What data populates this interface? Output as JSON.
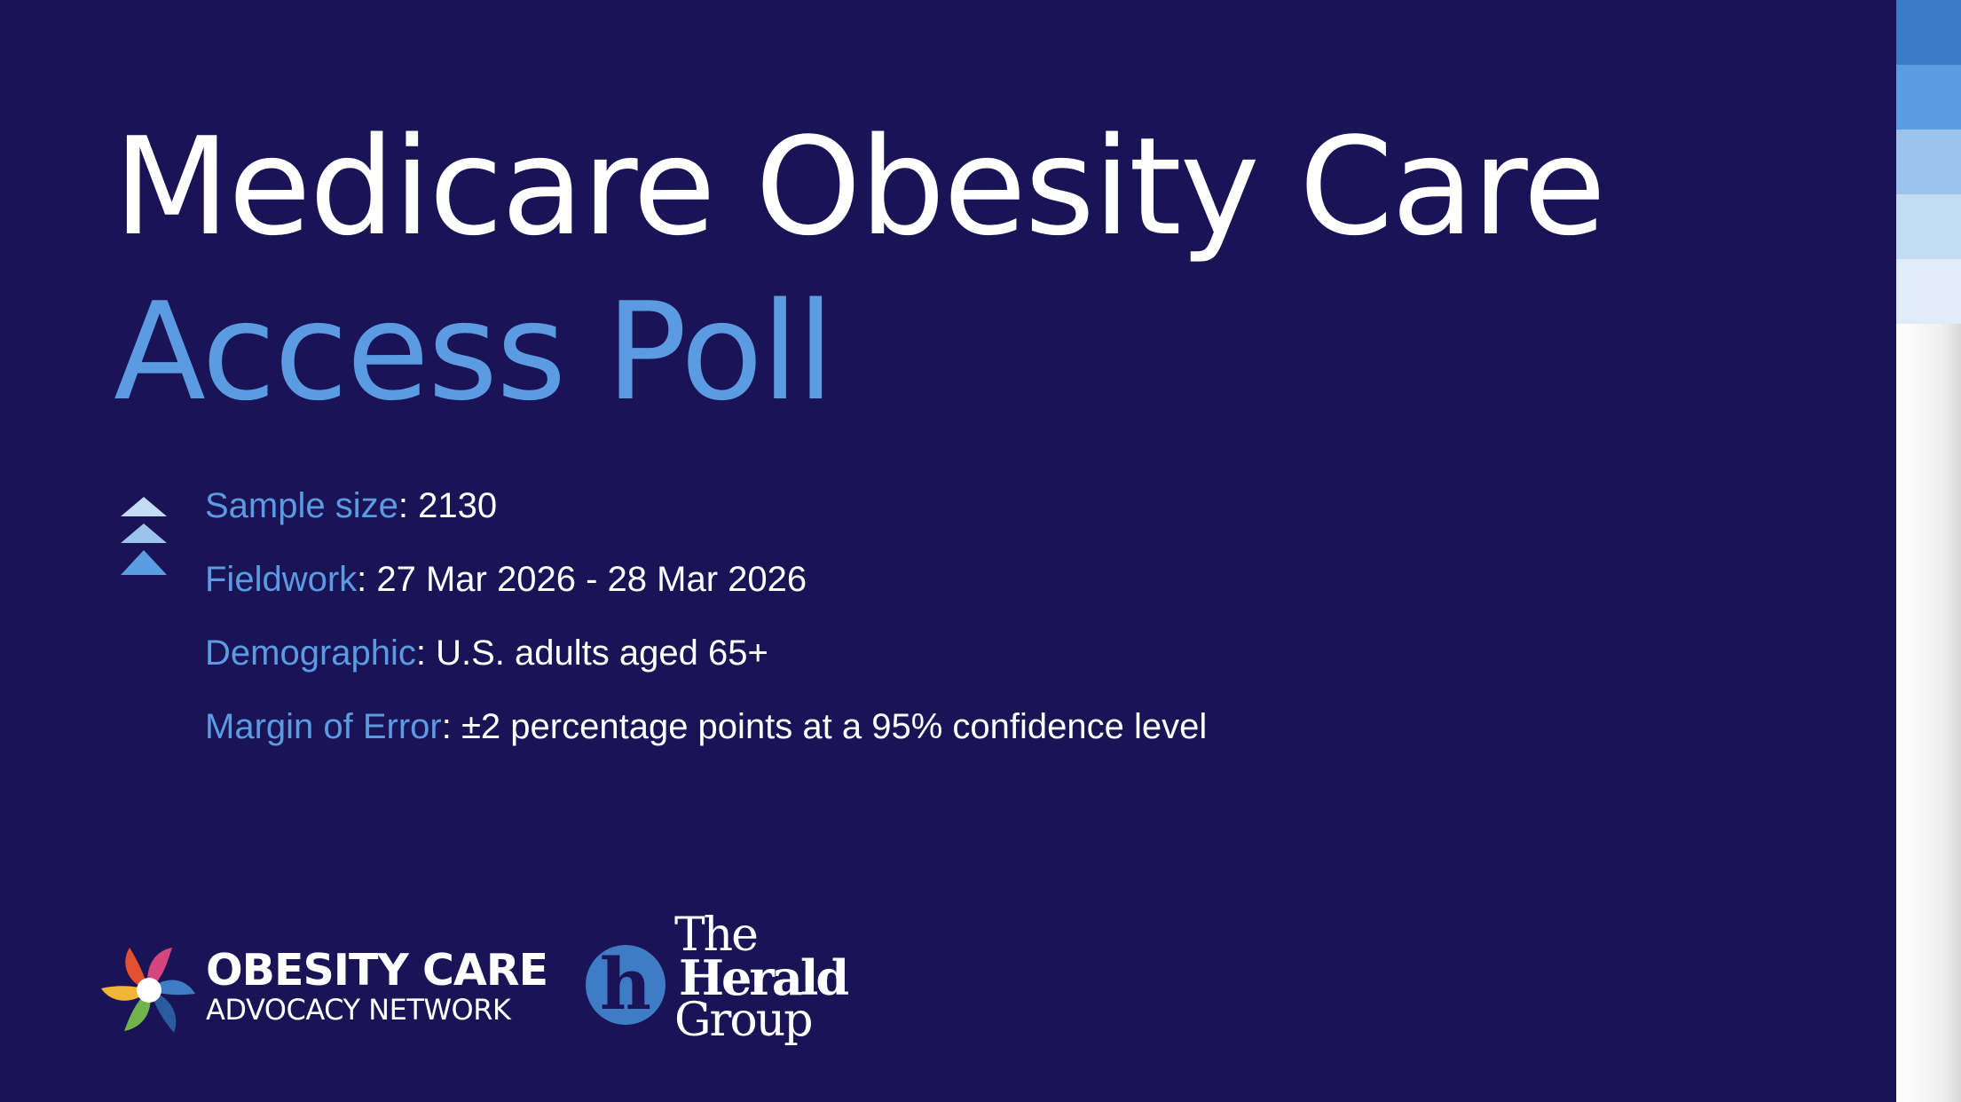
{
  "slide": {
    "title_line1": "Medicare Obesity Care",
    "title_line2": "Access Poll",
    "background_color": "#1a1457",
    "accent_color": "#5b9be2"
  },
  "facts": [
    {
      "label": "Sample size",
      "value": ": 2130"
    },
    {
      "label": "Fieldwork",
      "value": ": 27 Mar 2026 - 28 Mar 2026"
    },
    {
      "label": "Demographic",
      "value": ": U.S. adults aged 65+"
    },
    {
      "label": "Margin of Error",
      "value": ": ±2 percentage points at a 95% confidence level"
    }
  ],
  "icons": {
    "bullet_icon": "stacked-triangles-icon",
    "ocan_logo": "pinwheel-logo-icon",
    "herald_logo": "herald-h-circle-icon"
  },
  "logos": {
    "ocan_line1": "OBESITY CARE",
    "ocan_line2": "ADVOCACY NETWORK",
    "herald_mark": "h",
    "herald_line1": "The",
    "herald_line2": "Herald",
    "herald_line3": "Group"
  },
  "side_stripes": [
    "#3a7cc8",
    "#5a9de0",
    "#9cc3ec",
    "#c3dbf3",
    "#e0ecf8"
  ]
}
